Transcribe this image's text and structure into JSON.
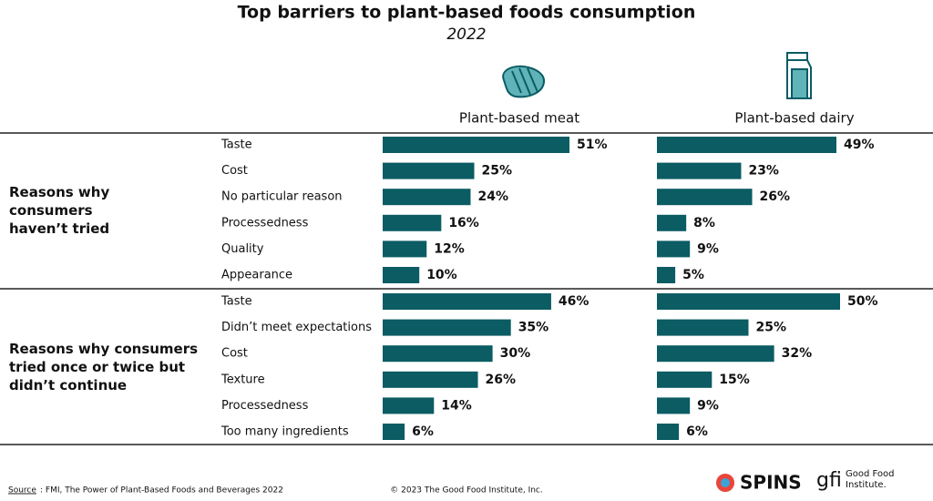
{
  "chart_data": {
    "type": "bar",
    "title": "Top barriers to plant-based foods consumption",
    "subtitle": "2022",
    "series": [
      {
        "name": "Plant-based meat",
        "color": "#0b5c63"
      },
      {
        "name": "Plant-based dairy",
        "color": "#0b5c63"
      }
    ],
    "groups": [
      {
        "label": "Reasons why consumers haven’t tried",
        "categories": [
          "Taste",
          "Cost",
          "No particular reason",
          "Processedness",
          "Quality",
          "Appearance"
        ],
        "series": [
          {
            "values": [
              51,
              25,
              24,
              16,
              12,
              10
            ],
            "value_labels": [
              "51%",
              "25%",
              "24%",
              "16%",
              "12%",
              "10%"
            ]
          },
          {
            "values": [
              49,
              23,
              26,
              8,
              9,
              5
            ],
            "value_labels": [
              "49%",
              "23%",
              "26%",
              "8%",
              "9%",
              "5%"
            ]
          }
        ]
      },
      {
        "label": "Reasons why consumers tried once or twice but didn’t continue",
        "categories": [
          "Taste",
          "Didn’t meet expectations",
          "Cost",
          "Texture",
          "Processedness",
          "Too many ingredients"
        ],
        "series": [
          {
            "values": [
              46,
              35,
              30,
              26,
              14,
              6
            ],
            "value_labels": [
              "46%",
              "35%",
              "30%",
              "26%",
              "14%",
              "6%"
            ]
          },
          {
            "values": [
              50,
              25,
              32,
              15,
              9,
              6
            ],
            "value_labels": [
              "50%",
              "25%",
              "32%",
              "15%",
              "9%",
              "6%"
            ]
          }
        ]
      }
    ],
    "source_label": "Source",
    "source": ": FMI, The Power of Plant-Based Foods and Beverages 2022",
    "copyright": "© 2023 The Good Food Institute, Inc.",
    "logos": [
      "SPINS",
      "gfi",
      "Good Food Institute."
    ]
  }
}
